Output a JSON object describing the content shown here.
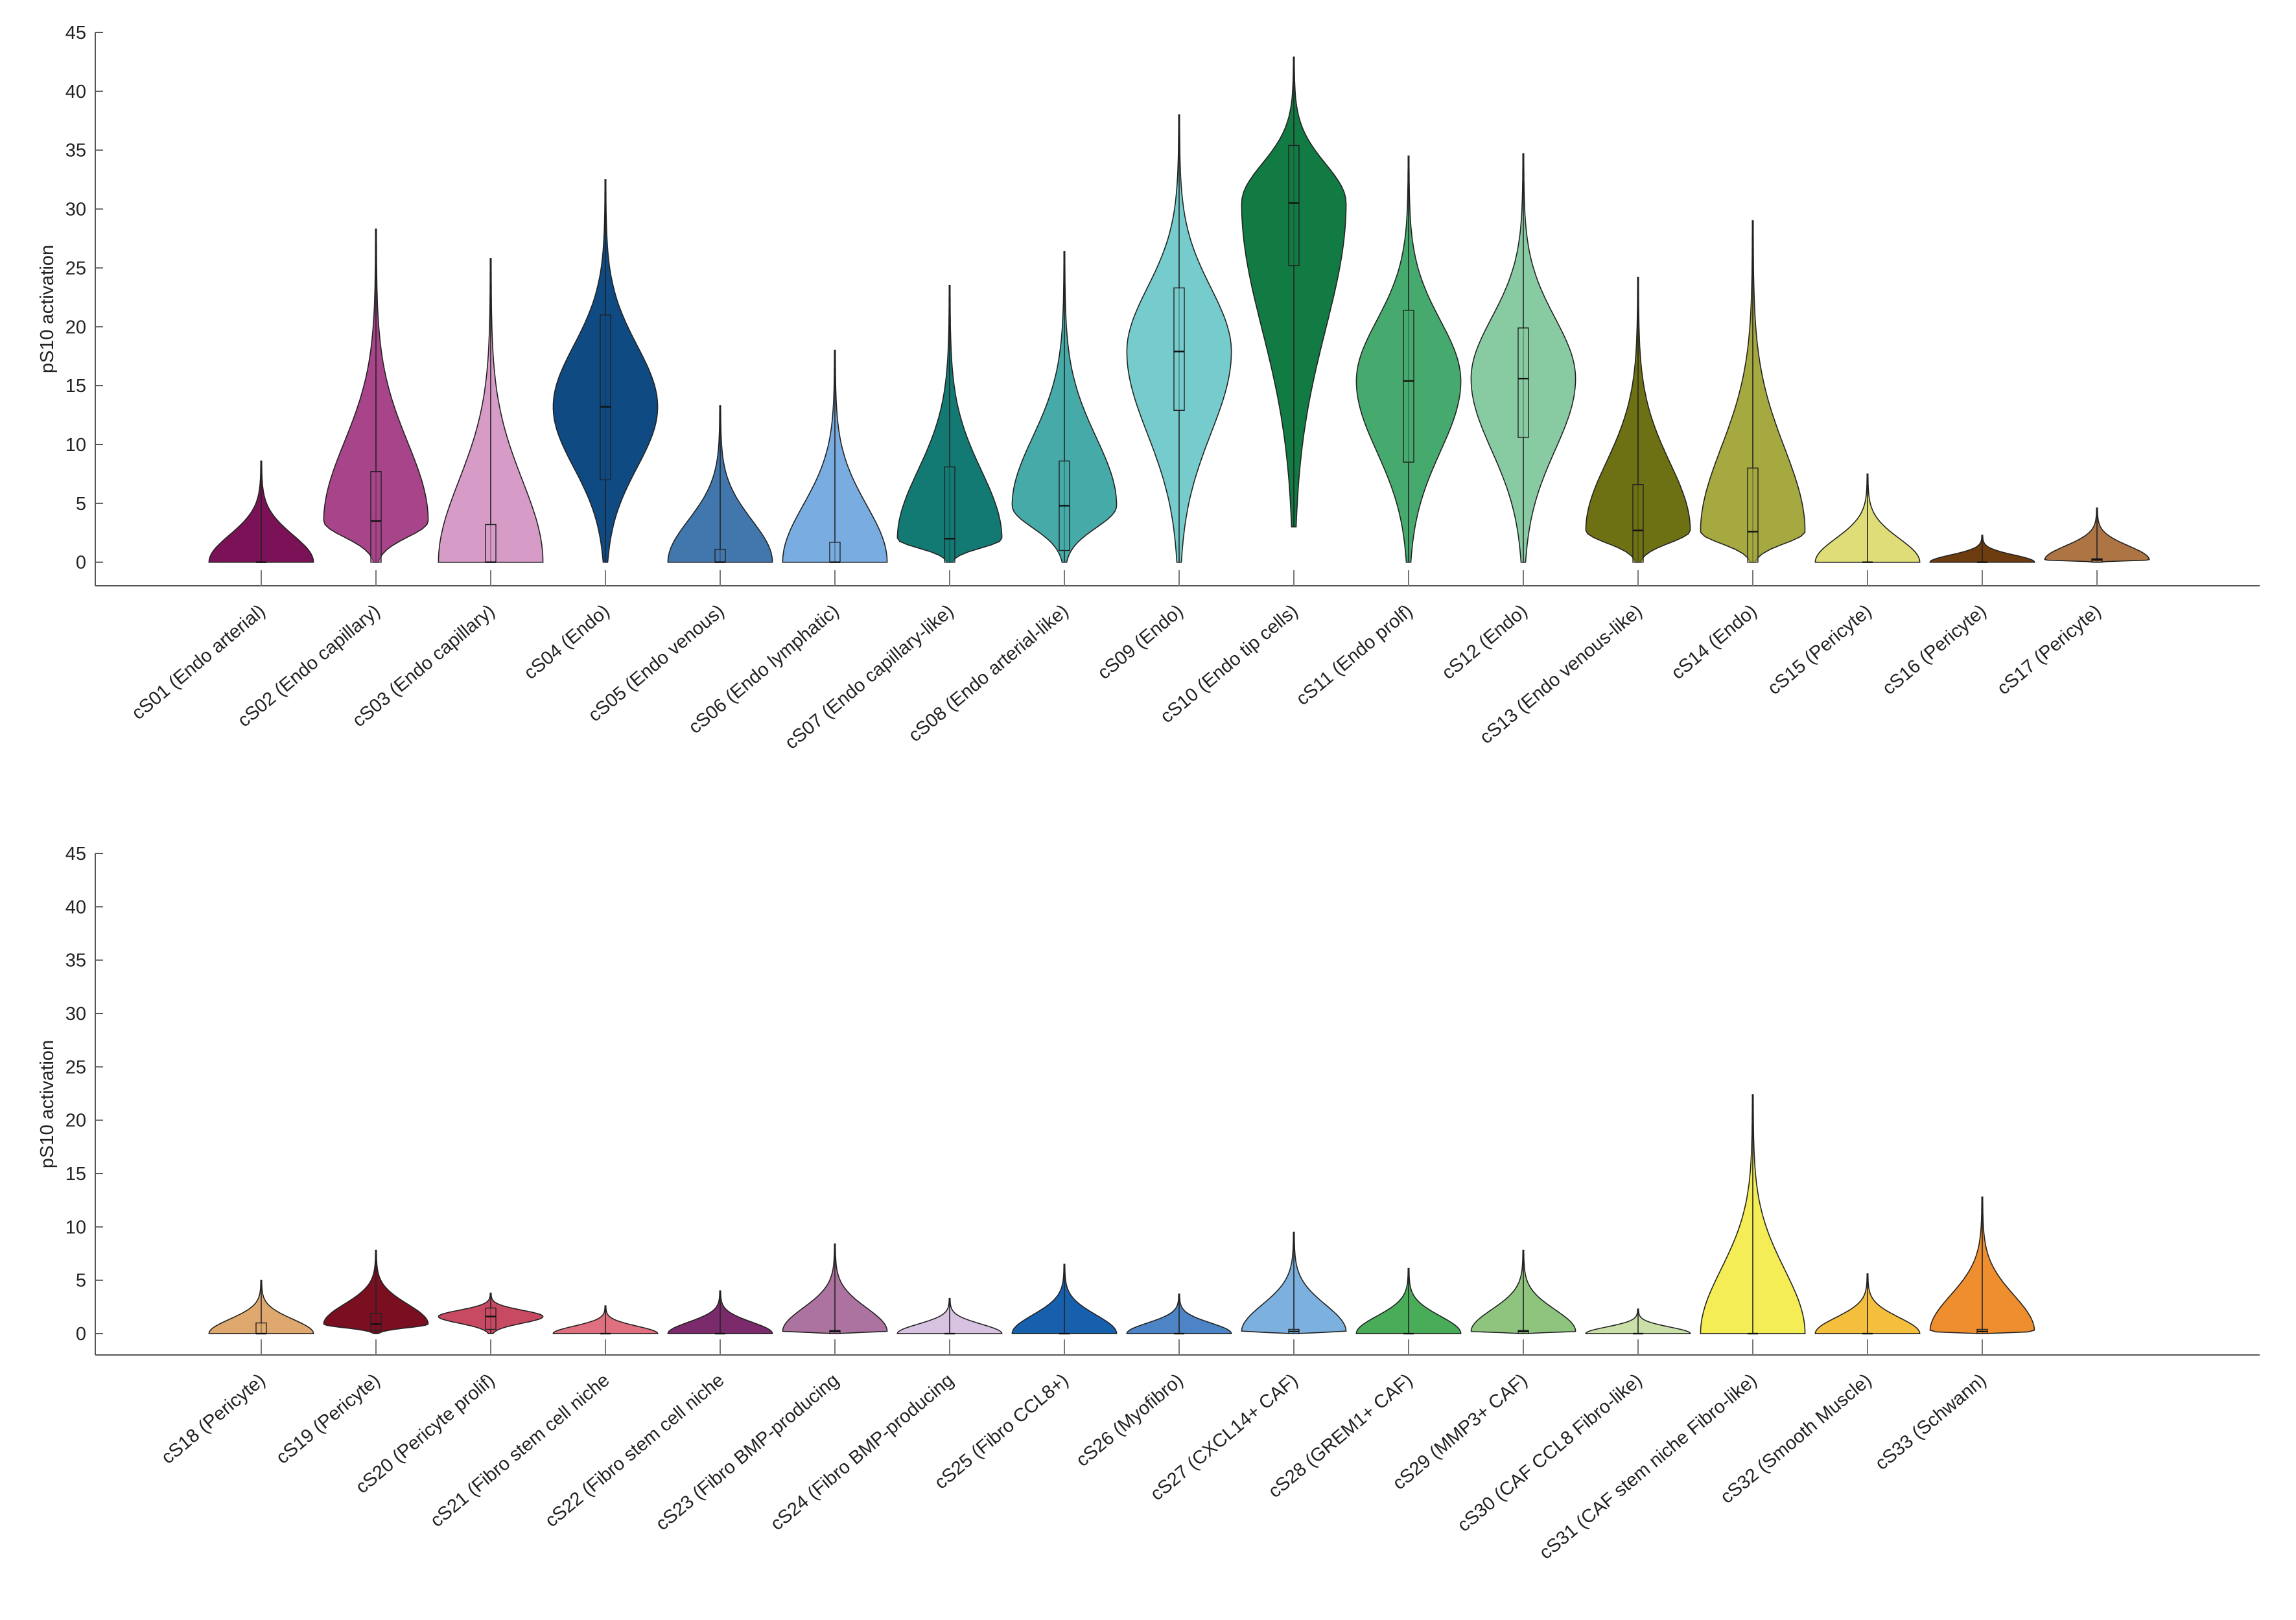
{
  "chart_data": [
    {
      "type": "violin",
      "ylabel": "pS10 activation",
      "ylim": [
        -2,
        45
      ],
      "yticks": [
        0,
        5,
        10,
        15,
        20,
        25,
        30,
        35,
        40,
        45
      ],
      "categories": [
        "cS01 (Endo arterial)",
        "cS02 (Endo capillary)",
        "cS03 (Endo capillary)",
        "cS04 (Endo)",
        "cS05 (Endo venous)",
        "cS06 (Endo lymphatic)",
        "cS07 (Endo capillary-like)",
        "cS08 (Endo arterial-like)",
        "cS09 (Endo)",
        "cS10 (Endo tip cells)",
        "cS11 (Endo prolf)",
        "cS12 (Endo)",
        "cS13 (Endo venous-like)",
        "cS14 (Endo)",
        "cS15 (Pericyte)",
        "cS16 (Pericyte)",
        "cS17 (Pericyte)"
      ],
      "colors": [
        "#7b1257",
        "#a8458a",
        "#d69bc6",
        "#0f4a82",
        "#4277ae",
        "#79ace0",
        "#137a73",
        "#46aaa8",
        "#76cccc",
        "#127a43",
        "#46aa6e",
        "#88cba3",
        "#6e7113",
        "#a6a840",
        "#dedd78",
        "#6e3d0f",
        "#ad7444"
      ],
      "min": [
        0,
        0,
        0,
        0,
        0,
        0,
        0,
        0,
        0,
        3,
        0,
        0,
        0,
        0,
        0,
        0,
        0
      ],
      "q1": [
        0,
        0,
        0,
        7,
        0,
        0,
        0,
        1,
        12.9,
        25.2,
        8.5,
        10.6,
        0,
        0,
        0,
        0,
        0
      ],
      "median": [
        0,
        3.5,
        0,
        13.2,
        0,
        0,
        2,
        4.8,
        17.9,
        30.5,
        15.4,
        15.6,
        2.7,
        2.6,
        0,
        0,
        0.2
      ],
      "q3": [
        0,
        7.7,
        3.2,
        21,
        1.1,
        1.7,
        8.1,
        8.6,
        23.3,
        35.4,
        21.4,
        19.9,
        6.6,
        8,
        0,
        0,
        0.3
      ],
      "max": [
        8.6,
        28.3,
        25.8,
        32.5,
        13.3,
        18,
        23.5,
        26.4,
        38,
        42.9,
        34.5,
        34.7,
        24.2,
        29,
        7.5,
        2.3,
        4.6
      ]
    },
    {
      "type": "violin",
      "ylabel": "pS10 activation",
      "ylim": [
        -2,
        45
      ],
      "yticks": [
        0,
        5,
        10,
        15,
        20,
        25,
        30,
        35,
        40,
        45
      ],
      "categories": [
        "cS18 (Pericyte)",
        "cS19 (Pericyte)",
        "cS20 (Pericyte prolif)",
        "cS21 (Fibro stem cell niche",
        "cS22 (Fibro stem cell niche",
        "cS23 (Fibro BMP-producing",
        "cS24 (Fibro BMP-producing",
        "cS25 (Fibro CCL8+)",
        "cS26 (Myofibro)",
        "cS27 (CXCL14+ CAF)",
        "cS28 (GREM1+ CAF)",
        "cS29 (MMP3+ CAF)",
        "cS30 (CAF CCL8 Fibro-like)",
        "cS31 (CAF stem niche Fibro-like)",
        "cS32 (Smooth Muscle)",
        "cS33 (Schwann)"
      ],
      "colors": [
        "#dea86f",
        "#7b0f22",
        "#c74a62",
        "#e07080",
        "#7b2a6b",
        "#ad73a0",
        "#d8c2e2",
        "#1760ad",
        "#4d84c6",
        "#7bb0df",
        "#48ac58",
        "#8fc47f",
        "#cae0a8",
        "#f4ed55",
        "#f4bf3d",
        "#ee8e2e"
      ],
      "min": [
        0,
        0,
        0,
        0,
        0,
        0,
        0,
        0,
        0,
        0,
        0,
        0,
        0,
        0,
        0,
        0
      ],
      "q1": [
        0,
        0.3,
        0.4,
        0,
        0,
        0,
        0,
        0,
        0,
        0,
        0,
        0,
        0,
        0,
        0,
        0
      ],
      "median": [
        0,
        0.9,
        1.6,
        0,
        0,
        0.2,
        0,
        0,
        0,
        0.2,
        0,
        0.2,
        0,
        0,
        0,
        0.2
      ],
      "q3": [
        1,
        1.9,
        2.4,
        0,
        0,
        0.3,
        0,
        0,
        0,
        0.4,
        0,
        0.3,
        0,
        0,
        0,
        0.4
      ],
      "max": [
        5,
        7.8,
        3.8,
        2.6,
        4,
        8.4,
        3.3,
        6.5,
        3.7,
        9.5,
        6.1,
        7.8,
        2.3,
        22.4,
        5.6,
        12.8
      ]
    }
  ]
}
